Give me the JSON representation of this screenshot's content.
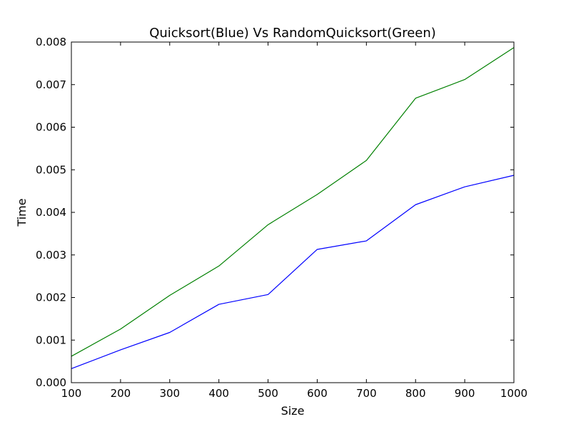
{
  "chart_data": {
    "type": "line",
    "title": "Quicksort(Blue) Vs RandomQuicksort(Green)",
    "xlabel": "Size",
    "ylabel": "Time",
    "xlim": [
      100,
      1000
    ],
    "ylim": [
      0,
      0.008
    ],
    "grid": false,
    "x": [
      100,
      200,
      300,
      400,
      500,
      600,
      700,
      800,
      900,
      1000
    ],
    "x_ticks": [
      "100",
      "200",
      "300",
      "400",
      "500",
      "600",
      "700",
      "800",
      "900",
      "1000"
    ],
    "y_tick_values": [
      0,
      0.001,
      0.002,
      0.003,
      0.004,
      0.005,
      0.006,
      0.007,
      0.008
    ],
    "y_ticks": [
      "0.000",
      "0.001",
      "0.002",
      "0.003",
      "0.004",
      "0.005",
      "0.006",
      "0.007",
      "0.008"
    ],
    "series": [
      {
        "color": "#0000ff",
        "values": [
          0.00033,
          0.00077,
          0.00118,
          0.00184,
          0.00207,
          0.00313,
          0.00333,
          0.00418,
          0.0046,
          0.00487
        ]
      },
      {
        "color": "#008000",
        "values": [
          0.00062,
          0.00126,
          0.00205,
          0.00274,
          0.00371,
          0.00442,
          0.00522,
          0.00668,
          0.00712,
          0.00787
        ]
      }
    ]
  }
}
